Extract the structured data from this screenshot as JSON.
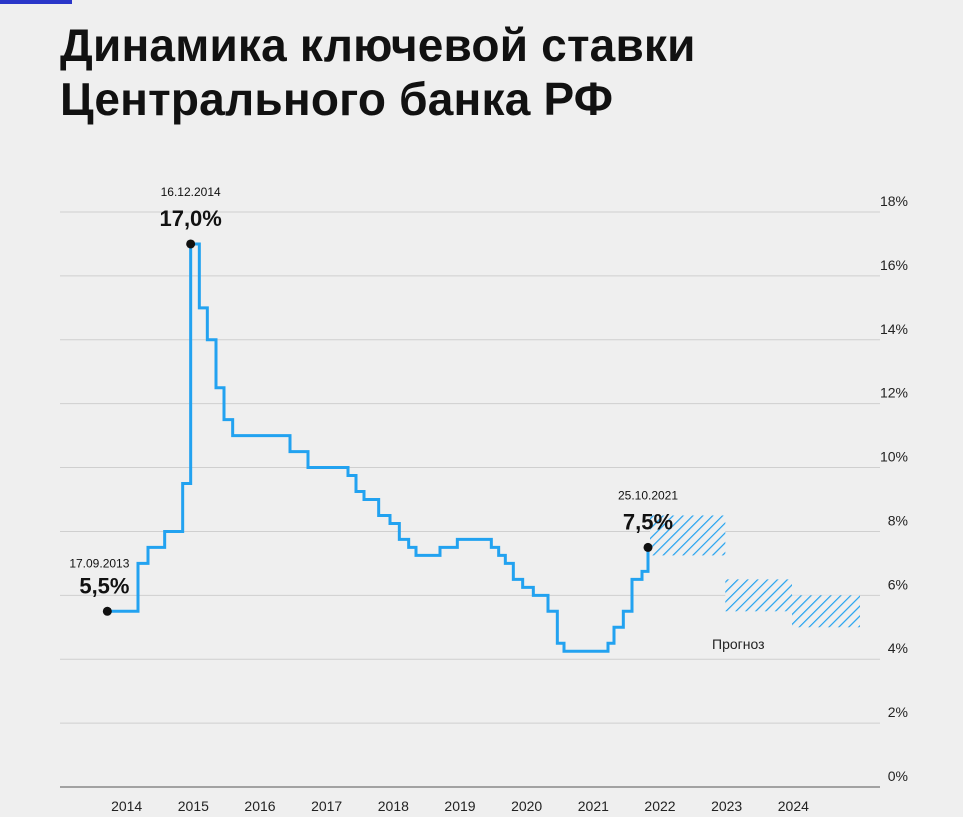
{
  "title": "Динамика ключевой ставки\nЦентрального банка РФ",
  "colors": {
    "line": "#22a2f0",
    "grid": "#cfcfcf",
    "text": "#111111",
    "background": "#efefef",
    "hatch": "#22a2f0"
  },
  "chart_data": {
    "type": "line",
    "step": true,
    "title": "Динамика ключевой ставки Центрального банка РФ",
    "xlabel": "",
    "ylabel": "",
    "ylim": [
      0,
      18
    ],
    "xlim": [
      2013.0,
      2025.3
    ],
    "y_axis_position": "right",
    "grid": true,
    "y_ticks": [
      "0%",
      "2%",
      "4%",
      "6%",
      "8%",
      "10%",
      "12%",
      "14%",
      "16%",
      "18%"
    ],
    "x_ticks": [
      "2014",
      "2015",
      "2016",
      "2017",
      "2018",
      "2019",
      "2020",
      "2021",
      "2022",
      "2023",
      "2024"
    ],
    "series": [
      {
        "points": [
          [
            2013.71,
            5.5
          ],
          [
            2014.17,
            7.0
          ],
          [
            2014.32,
            7.5
          ],
          [
            2014.57,
            8.0
          ],
          [
            2014.84,
            9.5
          ],
          [
            2014.96,
            17.0
          ],
          [
            2015.09,
            15.0
          ],
          [
            2015.21,
            14.0
          ],
          [
            2015.34,
            12.5
          ],
          [
            2015.46,
            11.5
          ],
          [
            2015.59,
            11.0
          ],
          [
            2016.45,
            10.5
          ],
          [
            2016.72,
            10.0
          ],
          [
            2017.32,
            9.75
          ],
          [
            2017.44,
            9.25
          ],
          [
            2017.56,
            9.0
          ],
          [
            2017.78,
            8.5
          ],
          [
            2017.95,
            8.25
          ],
          [
            2018.09,
            7.75
          ],
          [
            2018.23,
            7.5
          ],
          [
            2018.34,
            7.25
          ],
          [
            2018.7,
            7.5
          ],
          [
            2018.96,
            7.75
          ],
          [
            2019.47,
            7.5
          ],
          [
            2019.58,
            7.25
          ],
          [
            2019.68,
            7.0
          ],
          [
            2019.8,
            6.5
          ],
          [
            2019.94,
            6.25
          ],
          [
            2020.1,
            6.0
          ],
          [
            2020.32,
            5.5
          ],
          [
            2020.46,
            4.5
          ],
          [
            2020.56,
            4.25
          ],
          [
            2021.22,
            4.5
          ],
          [
            2021.31,
            5.0
          ],
          [
            2021.45,
            5.5
          ],
          [
            2021.58,
            6.5
          ],
          [
            2021.73,
            6.75
          ],
          [
            2021.82,
            7.5
          ]
        ]
      }
    ],
    "forecast": [
      {
        "x": [
          2021.85,
          2022.98
        ],
        "y": [
          7.25,
          8.5
        ]
      },
      {
        "x": [
          2022.98,
          2023.98
        ],
        "y": [
          5.5,
          6.5
        ]
      },
      {
        "x": [
          2023.98,
          2025.0
        ],
        "y": [
          5.0,
          6.0
        ]
      }
    ],
    "forecast_label": "Прогноз",
    "annotations": [
      {
        "date": "17.09.2013",
        "value": "5,5%",
        "x": 2013.71,
        "y": 5.5
      },
      {
        "date": "16.12.2014",
        "value": "17,0%",
        "x": 2014.96,
        "y": 17.0
      },
      {
        "date": "25.10.2021",
        "value": "7,5%",
        "x": 2021.82,
        "y": 7.5
      }
    ]
  }
}
